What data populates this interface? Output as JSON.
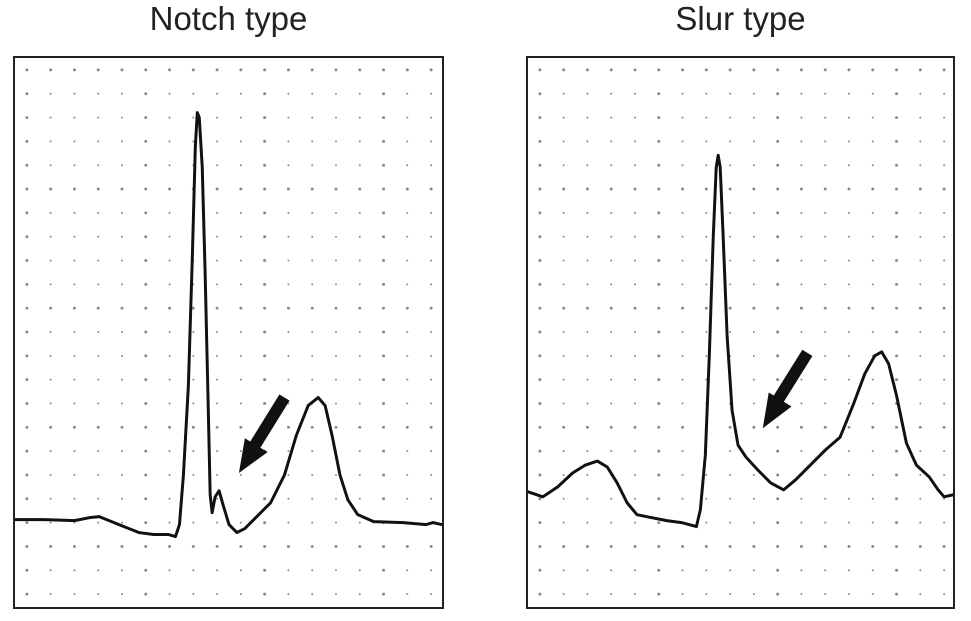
{
  "panels": {
    "notch": {
      "title": "Notch type"
    },
    "slur": {
      "title": "Slur type"
    }
  },
  "colors": {
    "trace": "#111111",
    "grid_dot": "#8a8a8a",
    "arrow": "#111111",
    "border": "#222222"
  }
}
